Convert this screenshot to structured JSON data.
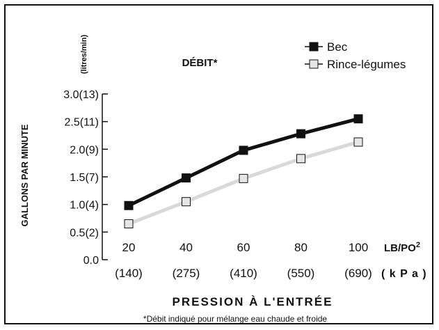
{
  "colors": {
    "series_bec": "#111111",
    "series_rince": "#d9d9d9",
    "text": "#111111",
    "frame": "#111111"
  },
  "icons": {
    "series_bec_marker": "filled-square-marker",
    "series_rince_marker": "hollow-light-square-marker"
  },
  "chart_data": {
    "type": "line",
    "title": "DÉBIT*",
    "ylabel_primary": "GALLONS PAR MINUTE",
    "ylabel_secondary": "(litres/min)",
    "xlabel": "PRESSION À L'ENTRÉE",
    "x_unit_primary": "LB/PO²",
    "x_unit_secondary": "( k P a )",
    "footnote": "*Débit indiqué pour mélange eau chaude et froide",
    "ylim": [
      0,
      3.0
    ],
    "yticks": [
      {
        "value": 0.0,
        "label": "0.0"
      },
      {
        "value": 0.5,
        "label": "0.5(2)"
      },
      {
        "value": 1.0,
        "label": "1.0(4)"
      },
      {
        "value": 1.5,
        "label": "1.5(7)"
      },
      {
        "value": 2.0,
        "label": "2.0(9)"
      },
      {
        "value": 2.5,
        "label": "2.5(11)"
      },
      {
        "value": 3.0,
        "label": "3.0(13)"
      }
    ],
    "x": [
      20,
      40,
      60,
      80,
      100
    ],
    "xtick_labels": [
      "20",
      "40",
      "60",
      "80",
      "100"
    ],
    "xtick_labels_secondary": [
      "(140)",
      "(275)",
      "(410)",
      "(550)",
      "(690)"
    ],
    "legend_position": "top-right",
    "grid": false,
    "series": [
      {
        "name": "Bec",
        "values": [
          0.98,
          1.48,
          1.98,
          2.28,
          2.55
        ]
      },
      {
        "name": "Rince-légumes",
        "values": [
          0.65,
          1.05,
          1.47,
          1.83,
          2.13
        ]
      }
    ]
  }
}
